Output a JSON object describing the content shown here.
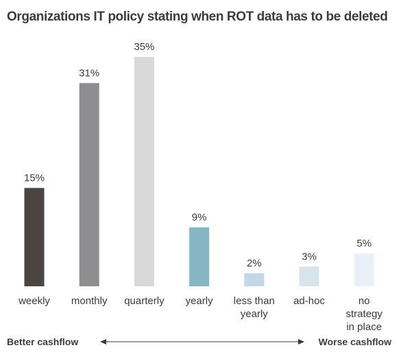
{
  "chart_data": {
    "type": "bar",
    "title": "Organizations IT policy stating when ROT data has to be deleted",
    "categories": [
      "weekly",
      "monthly",
      "quarterly",
      "yearly",
      "less than yearly",
      "ad-hoc",
      "no strategy in place"
    ],
    "category_lines": [
      [
        "weekly"
      ],
      [
        "monthly"
      ],
      [
        "quarterly"
      ],
      [
        "yearly"
      ],
      [
        "less than",
        "yearly"
      ],
      [
        "ad-hoc"
      ],
      [
        "no",
        "strategy",
        "in place"
      ]
    ],
    "values": [
      15,
      31,
      35,
      9,
      2,
      3,
      5
    ],
    "value_labels": [
      "15%",
      "31%",
      "35%",
      "9%",
      "2%",
      "3%",
      "5%"
    ],
    "colors": [
      "#4a4541",
      "#8e8e90",
      "#d9d9da",
      "#86b6c2",
      "#c3d7e6",
      "#d8e4ee",
      "#eaf0fa"
    ],
    "ylim": [
      0,
      35
    ],
    "grid": false,
    "legend": "none"
  },
  "footer": {
    "left_label": "Better cashflow",
    "right_label": "Worse cashflow"
  }
}
